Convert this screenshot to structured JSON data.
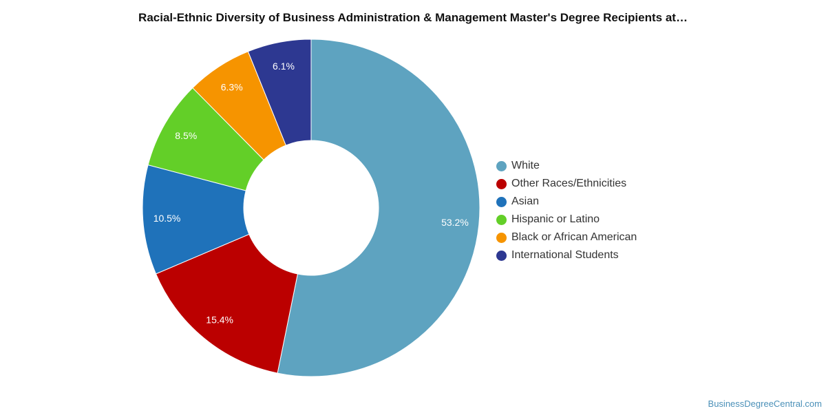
{
  "chart_data": {
    "type": "pie",
    "variant": "donut",
    "title": "Racial-Ethnic Diversity of Business Administration & Management Master's Degree Recipients at…",
    "slices": [
      {
        "label": "White",
        "value": 53.2,
        "value_label": "53.2%",
        "color": "#5ea3c0"
      },
      {
        "label": "Other Races/Ethnicities",
        "value": 15.4,
        "value_label": "15.4%",
        "color": "#bb0000"
      },
      {
        "label": "Asian",
        "value": 10.5,
        "value_label": "10.5%",
        "color": "#1f72ba"
      },
      {
        "label": "Hispanic or Latino",
        "value": 8.5,
        "value_label": "8.5%",
        "color": "#63cf28"
      },
      {
        "label": "Black or African American",
        "value": 6.3,
        "value_label": "6.3%",
        "color": "#f69400"
      },
      {
        "label": "International Students",
        "value": 6.1,
        "value_label": "6.1%",
        "color": "#2d3891"
      }
    ],
    "start_angle": "12 o'clock",
    "direction": "clockwise",
    "legend_position": "right"
  },
  "footer": {
    "watermark": "BusinessDegreeCentral.com"
  }
}
